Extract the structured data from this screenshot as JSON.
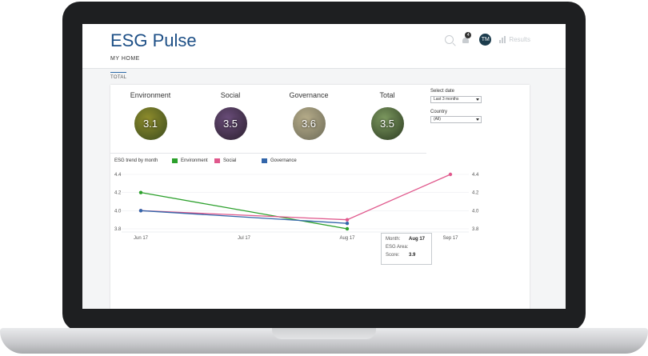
{
  "header": {
    "app_title": "ESG Pulse",
    "notification_count": "4",
    "avatar_initials": "TM",
    "results_label": "Results"
  },
  "nav": {
    "home_label": "MY HOME",
    "tab_label": "TOTAL"
  },
  "kpis": [
    {
      "label": "Environment",
      "value": "3.1",
      "colors": [
        "#3a4a1e",
        "#8f8d2c"
      ]
    },
    {
      "label": "Social",
      "value": "3.5",
      "colors": [
        "#2b1f2e",
        "#6a4d7a"
      ]
    },
    {
      "label": "Governance",
      "value": "3.6",
      "colors": [
        "#6c6a57",
        "#b7ad8a"
      ]
    },
    {
      "label": "Total",
      "value": "3.5",
      "colors": [
        "#2b3a20",
        "#7d9a60"
      ]
    }
  ],
  "filters": {
    "date_label": "Select date",
    "date_value": "Last 3 months",
    "country_label": "Country",
    "country_value": "(All)"
  },
  "trend": {
    "title": "ESG trend by month",
    "legend": [
      {
        "name": "Environment",
        "color": "#2ca02c"
      },
      {
        "name": "Social",
        "color": "#e0588c"
      },
      {
        "name": "Governance",
        "color": "#3366aa"
      }
    ]
  },
  "chart_data": {
    "type": "line",
    "x": [
      "Jun 17",
      "Jul 17",
      "Aug 17",
      "Sep 17"
    ],
    "ylim": [
      3.8,
      4.4
    ],
    "yticks": [
      "4.4",
      "4.2",
      "4.0",
      "3.8"
    ],
    "grid": true,
    "series": [
      {
        "name": "Environment",
        "color": "#2ca02c",
        "values": [
          4.2,
          null,
          3.8,
          null
        ]
      },
      {
        "name": "Social",
        "color": "#e0588c",
        "values": [
          4.0,
          null,
          3.9,
          4.4
        ]
      },
      {
        "name": "Governance",
        "color": "#3366aa",
        "values": [
          4.0,
          null,
          3.86,
          null
        ]
      }
    ]
  },
  "tooltip": {
    "month_label": "Month:",
    "month_value": "Aug 17",
    "area_label": "ESG Area:",
    "area_value": "",
    "score_label": "Score:",
    "score_value": "3.9"
  }
}
